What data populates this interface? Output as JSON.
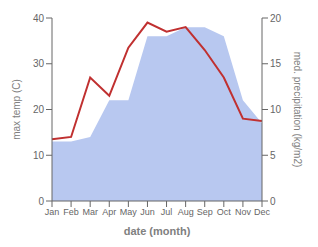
{
  "chart_data": {
    "type": "line",
    "xlabel": "date (month)",
    "ylabel": "max temp (C)",
    "y2label": "med. precipitation (kg/m2)",
    "categories": [
      "Jan",
      "Feb",
      "Mar",
      "Apr",
      "May",
      "Jun",
      "Jul",
      "Aug",
      "Sep",
      "Oct",
      "Nov",
      "Dec"
    ],
    "series": [
      {
        "type": "area",
        "color": "#b8c8f0",
        "values": [
          13.0,
          13.0,
          14.0,
          22.0,
          22.0,
          36.0,
          36.0,
          38.0,
          38.0,
          36.0,
          22.0,
          17.0
        ]
      },
      {
        "type": "line",
        "color": "#c03030",
        "values": [
          13.5,
          14.0,
          27.0,
          23.0,
          33.5,
          39.0,
          37.0,
          38.0,
          33.0,
          27.0,
          18.0,
          17.5
        ]
      }
    ],
    "ylim": [
      0,
      40
    ],
    "yticks": [
      0,
      10,
      20,
      30,
      40
    ],
    "y2lim": [
      0,
      20
    ],
    "y2ticks": [
      0,
      5,
      10,
      15,
      20
    ],
    "grid": false
  }
}
